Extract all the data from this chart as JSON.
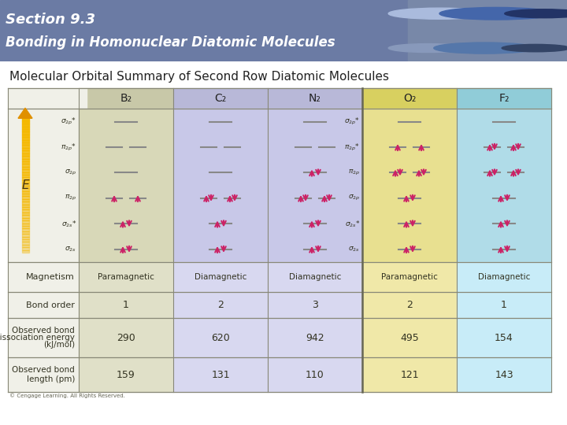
{
  "title_line1": "Section 9.3",
  "title_line2": "Bonding in Homonuclear Diatomic Molecules",
  "subtitle": "Molecular Orbital Summary of Second Row Diatomic Molecules",
  "header_bg": "#6b7ba4",
  "white_bg": "#ffffff",
  "molecules": [
    "B₂",
    "C₂",
    "N₂",
    "O₂",
    "F₂"
  ],
  "hdr_cols": [
    "#c8c8a8",
    "#b8b8d8",
    "#b8b8d8",
    "#d8d060",
    "#90ccd8"
  ],
  "body_cols": [
    "#d8d8b8",
    "#c8c8e8",
    "#c8c8e8",
    "#e8e090",
    "#b0dce8"
  ],
  "bottom_cols": [
    "#e0e0c8",
    "#d8d8f0",
    "#d8d8f0",
    "#f0e8a8",
    "#c8ecf8"
  ],
  "row_label_bg": "#f0f0e8",
  "magnetism": [
    "Paramagnetic",
    "Diamagnetic",
    "Diamagnetic",
    "Paramagnetic",
    "Diamagnetic"
  ],
  "bond_order": [
    "1",
    "2",
    "3",
    "2",
    "1"
  ],
  "dissociation_energy": [
    "290",
    "620",
    "942",
    "495",
    "154"
  ],
  "bond_length": [
    "159",
    "131",
    "110",
    "121",
    "143"
  ],
  "arrow_color": "#f5b800",
  "electron_color": "#cc2266"
}
